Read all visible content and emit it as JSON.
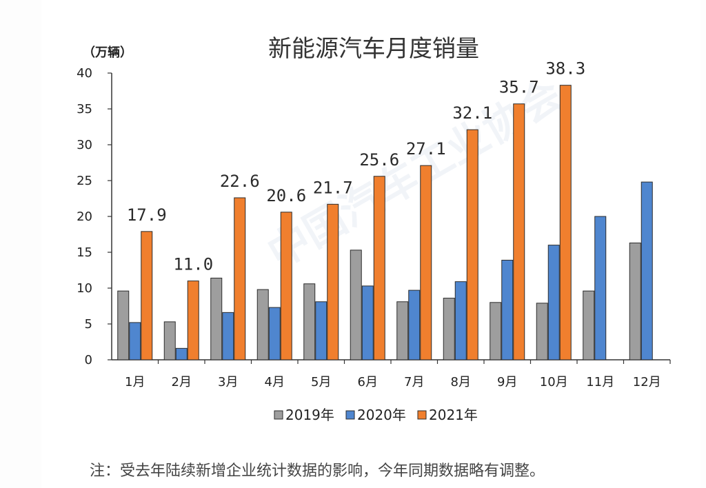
{
  "chart_data": {
    "type": "bar",
    "title": "新能源汽车月度销量",
    "ylabel": "（万辆）",
    "xlabel": "",
    "ylim": [
      0,
      40
    ],
    "yticks": [
      0,
      5,
      10,
      15,
      20,
      25,
      30,
      35,
      40
    ],
    "categories": [
      "1月",
      "2月",
      "3月",
      "4月",
      "5月",
      "6月",
      "7月",
      "8月",
      "9月",
      "10月",
      "11月",
      "12月"
    ],
    "series": [
      {
        "name": "2019年",
        "color": "#9e9e9e",
        "values": [
          9.6,
          5.3,
          11.4,
          9.8,
          10.6,
          15.3,
          8.1,
          8.6,
          8.0,
          7.9,
          9.6,
          16.3
        ]
      },
      {
        "name": "2020年",
        "color": "#4f86cf",
        "values": [
          5.2,
          1.6,
          6.6,
          7.3,
          8.1,
          10.3,
          9.7,
          10.9,
          13.9,
          16.0,
          20.0,
          24.8
        ]
      },
      {
        "name": "2021年",
        "color": "#f07f2e",
        "values": [
          17.9,
          11.0,
          22.6,
          20.6,
          21.7,
          25.6,
          27.1,
          32.1,
          35.7,
          38.3,
          null,
          null
        ]
      }
    ],
    "data_labels": [
      "17.9",
      "11.0",
      "22.6",
      "20.6",
      "21.7",
      "25.6",
      "27.1",
      "32.1",
      "35.7",
      "38.3"
    ],
    "legend_position": "bottom",
    "grid": false
  },
  "note": "注：受去年陆续新增企业统计数据的影响，今年同期数据略有调整。",
  "watermark": "中国汽车工业协会"
}
